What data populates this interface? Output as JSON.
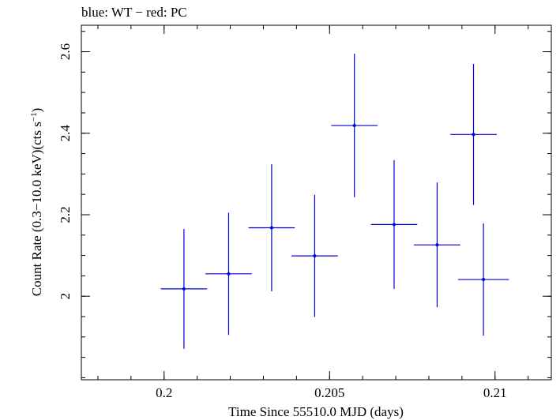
{
  "chart_data": {
    "type": "scatter",
    "title": "blue: WT − red: PC",
    "xlabel": "Time Since 55510.0 MJD (days)",
    "ylabel_main": "Count Rate (0.3−10.0 keV)(cts s",
    "ylabel_sup": "−1",
    "ylabel_close": ")",
    "xlim": [
      0.1975,
      0.2117
    ],
    "ylim": [
      1.795,
      2.665
    ],
    "x_ticks": [
      0.2,
      0.205,
      0.21
    ],
    "x_tick_labels": [
      "0.2",
      "0.205",
      "0.21"
    ],
    "y_ticks": [
      2.0,
      2.2,
      2.4,
      2.6
    ],
    "y_tick_labels": [
      "2",
      "2.2",
      "2.4",
      "2.6"
    ],
    "x_minor_step": 0.001,
    "y_minor_step": 0.05,
    "series": [
      {
        "color": "#0000dd",
        "points": [
          {
            "x": 0.20935,
            "xerr": 0.0007,
            "y": 2.397,
            "yerr": 0.173
          },
          {
            "x": 0.2006,
            "xerr": 0.0007,
            "y": 2.018,
            "yerr": 0.147
          },
          {
            "x": 0.20195,
            "xerr": 0.0007,
            "y": 2.055,
            "yerr": 0.15
          },
          {
            "x": 0.20325,
            "xerr": 0.0007,
            "y": 2.168,
            "yerr": 0.156
          },
          {
            "x": 0.20455,
            "xerr": 0.0007,
            "y": 2.099,
            "yerr": 0.15
          },
          {
            "x": 0.20575,
            "xerr": 0.0007,
            "y": 2.419,
            "yerr": 0.176
          },
          {
            "x": 0.20695,
            "xerr": 0.0007,
            "y": 2.176,
            "yerr": 0.158
          },
          {
            "x": 0.20825,
            "xerr": 0.0007,
            "y": 2.126,
            "yerr": 0.153
          },
          {
            "x": 0.20965,
            "xerr": 0.00077,
            "y": 2.041,
            "yerr": 0.138
          }
        ]
      }
    ]
  }
}
